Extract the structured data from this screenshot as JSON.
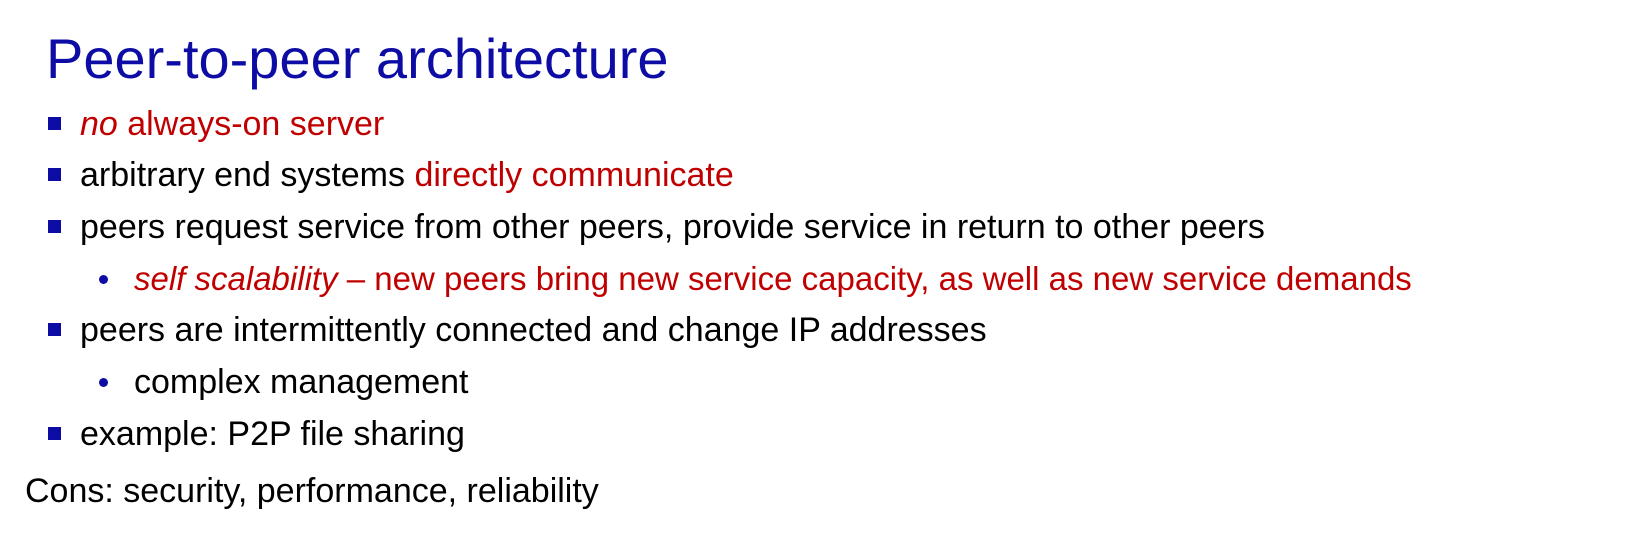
{
  "slide": {
    "title": "Peer-to-peer architecture",
    "colors": {
      "title": "#0d0da6",
      "bullet": "#0d0da6",
      "emphasis": "#c00000",
      "text": "#000000"
    },
    "bullets": [
      {
        "em": "no",
        "red": " always-on server"
      },
      {
        "text": "arbitrary end systems ",
        "red": "directly communicate"
      },
      {
        "text": "peers request service from other peers, provide service in return to other peers"
      },
      {
        "em": "self scalability",
        "red": " – new peers bring new service capacity, as well as new service demands"
      },
      {
        "text": "peers are intermittently connected and change IP addresses"
      },
      {
        "text": "complex management"
      },
      {
        "text": "example: P2P file sharing"
      }
    ],
    "footer": "Cons: security, performance, reliability"
  }
}
